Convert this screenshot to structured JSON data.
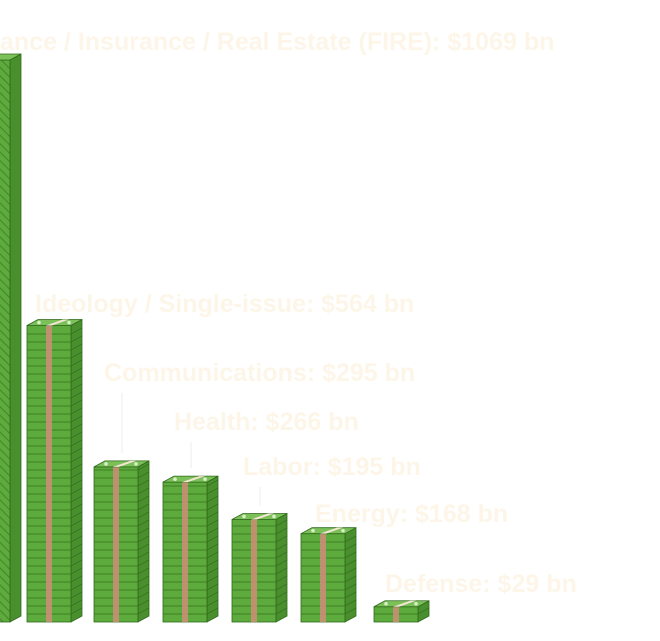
{
  "chart_data": {
    "type": "bar",
    "categories": [
      "Finance / Insurance / Real Estate (FIRE)",
      "Ideology / Single-issue",
      "Communications",
      "Health",
      "Labor",
      "Energy",
      "Defense"
    ],
    "values": [
      1069,
      564,
      295,
      266,
      195,
      168,
      29
    ],
    "unit": "bn",
    "labels": [
      "ance / Insurance / Real Estate (FIRE): $1069 bn",
      "Ideology / Single-issue: $564 bn",
      "Communications: $295 bn",
      "Health: $266 bn",
      "Labor: $195 bn",
      "Energy: $168 bn",
      "Defense: $29 bn"
    ],
    "title": "",
    "xlabel": "",
    "ylabel": "",
    "ylim": [
      0,
      1069
    ],
    "grid": false,
    "legend": "none",
    "colors": {
      "bill_face": "#5daa3d",
      "bill_dark": "#3e7d25",
      "bill_side": "#4a8f2e",
      "bill_line": "#2f6a1b",
      "band": "#c98e75",
      "label": "#fdf6e8"
    },
    "mark_style": "stacks-of-banknotes"
  }
}
